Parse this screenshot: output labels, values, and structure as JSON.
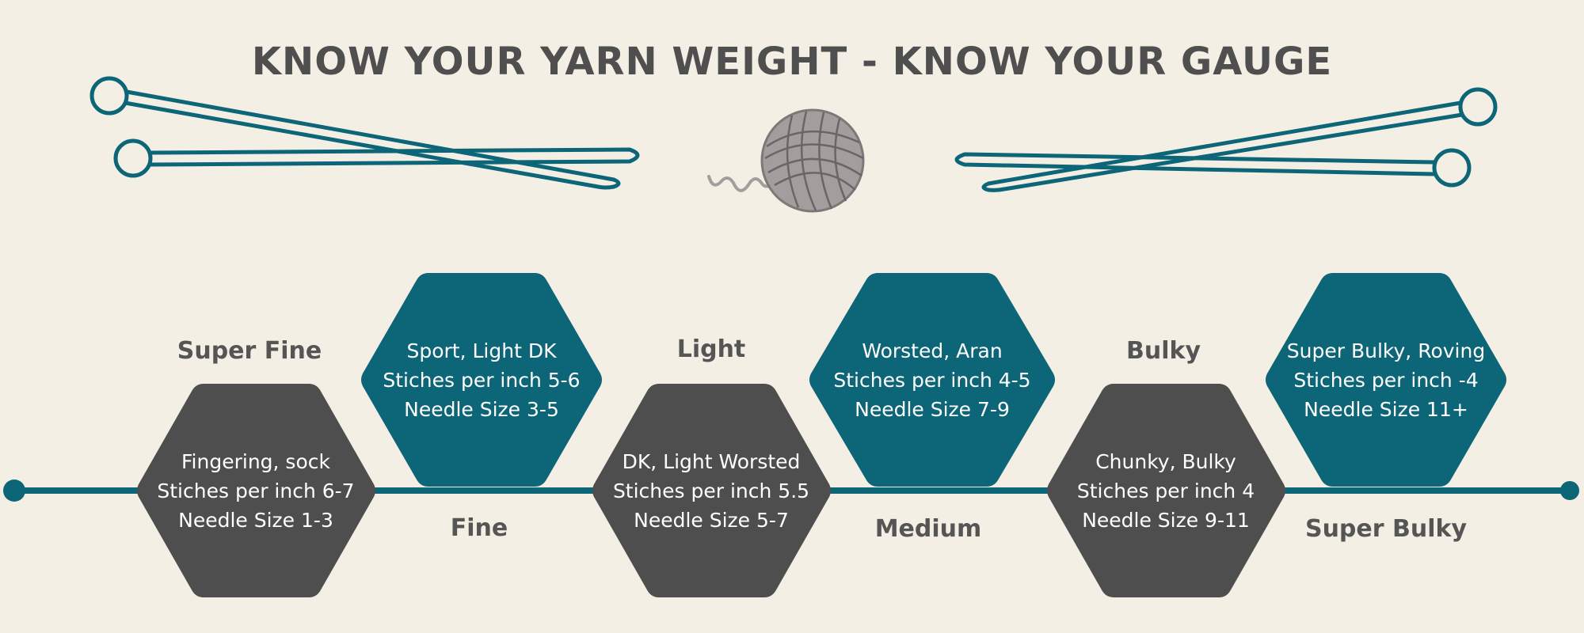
{
  "title": "KNOW YOUR YARN WEIGHT - KNOW YOUR GAUGE",
  "colors": {
    "background": "#f3efe5",
    "teal": "#0d6578",
    "dark": "#4e4e4e",
    "yarn": "#a39d9d",
    "label": "#555555"
  },
  "icons": [
    "knitting-needles-icon",
    "yarn-ball-icon"
  ],
  "weights": [
    {
      "name": "Super Fine",
      "lines": [
        "Fingering, sock",
        "Stiches per inch  6-7",
        "Needle Size 1-3"
      ]
    },
    {
      "name": "Fine",
      "lines": [
        "Sport, Light DK",
        "Stiches per inch  5-6",
        "Needle Size 3-5"
      ]
    },
    {
      "name": "Light",
      "lines": [
        "DK, Light Worsted",
        "Stiches per inch  5.5",
        "Needle Size 5-7"
      ]
    },
    {
      "name": "Medium",
      "lines": [
        "Worsted, Aran",
        "Stiches per inch  4-5",
        "Needle Size 7-9"
      ]
    },
    {
      "name": "Bulky",
      "lines": [
        "Chunky, Bulky",
        "Stiches per inch 4",
        "Needle Size 9-11"
      ]
    },
    {
      "name": "Super Bulky",
      "lines": [
        "Super Bulky, Roving",
        "Stiches per inch -4",
        "Needle Size 11+"
      ]
    }
  ]
}
